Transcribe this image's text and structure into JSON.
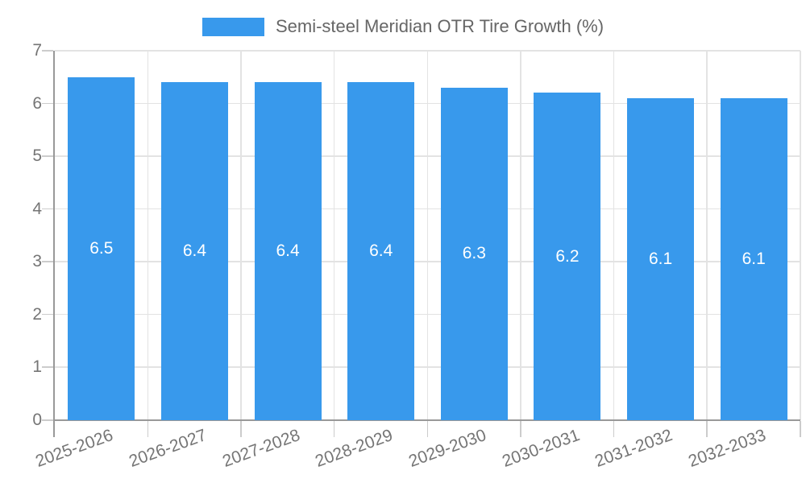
{
  "legend": {
    "label": "Semi-steel Meridian OTR Tire Growth (%)"
  },
  "chart_data": {
    "type": "bar",
    "title": "Semi-steel Meridian OTR Tire Growth (%)",
    "categories": [
      "2025-2026",
      "2026-2027",
      "2027-2028",
      "2028-2029",
      "2029-2030",
      "2030-2031",
      "2031-2032",
      "2032-2033"
    ],
    "values": [
      6.5,
      6.4,
      6.4,
      6.4,
      6.3,
      6.2,
      6.1,
      6.1
    ],
    "bar_value_labels": [
      "6.5",
      "6.4",
      "6.4",
      "6.4",
      "6.3",
      "6.2",
      "6.1",
      "6.1"
    ],
    "xlabel": "",
    "ylabel": "",
    "ylim": [
      0,
      7
    ],
    "yticks": [
      0,
      1,
      2,
      3,
      4,
      5,
      6,
      7
    ],
    "grid": true,
    "legend_position": "top"
  },
  "colors": {
    "bar": "#3899EC",
    "bar_label": "#FFFFFF",
    "axis": "#999999",
    "grid": "#E3E3E3",
    "tick": "#CCCCCC",
    "tick_text": "#757575",
    "legend_text": "#666666",
    "background": "#FFFFFF"
  }
}
